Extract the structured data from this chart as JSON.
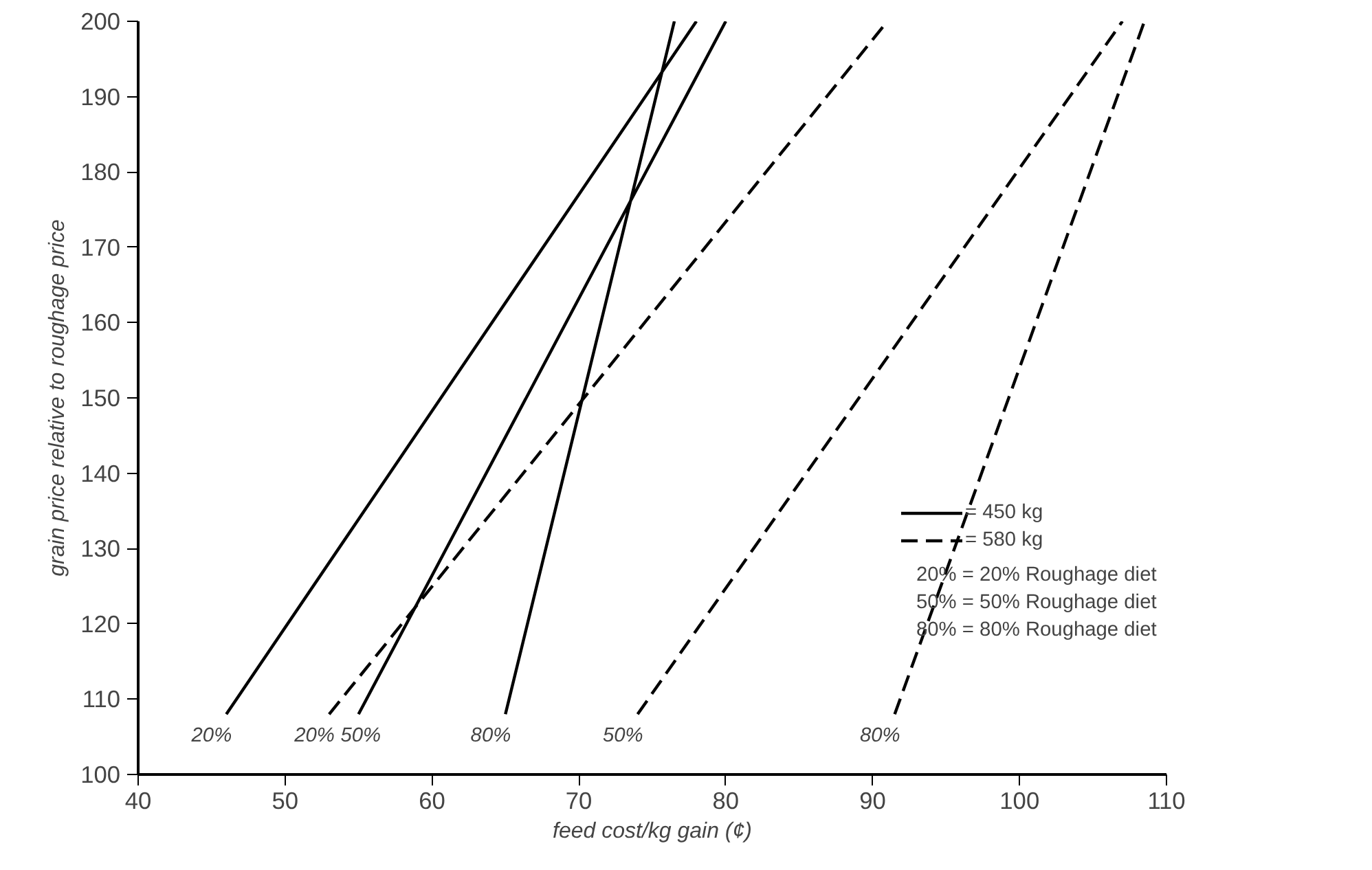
{
  "chart_data": {
    "type": "line",
    "xlabel": "feed cost/kg gain (¢)",
    "ylabel": "grain price relative to roughage price",
    "xlim": [
      40,
      110
    ],
    "ylim": [
      100,
      200
    ],
    "xticks": [
      40,
      50,
      60,
      70,
      80,
      90,
      100,
      110
    ],
    "yticks": [
      100,
      110,
      120,
      130,
      140,
      150,
      160,
      170,
      180,
      190,
      200
    ],
    "grid": false,
    "legend": "bottom right",
    "series": [
      {
        "name": "= 450 kg",
        "color": "#000000",
        "line_style": "solid",
        "x": [
          46,
          78,
          null,
          55,
          80,
          null,
          65,
          76.5
        ],
        "values": [
          108,
          200,
          null,
          108,
          200,
          null,
          108,
          200
        ]
      },
      {
        "name": "= 580 kg",
        "color": "#000000",
        "line_style": "dashed",
        "x": [
          53,
          91,
          null,
          74,
          107,
          null,
          91.5,
          108.5
        ],
        "values": [
          108,
          200,
          null,
          108,
          200,
          null,
          108,
          200
        ]
      }
    ],
    "annotations": [
      "20% = 20% Roughage diet",
      "50% = 50% Roughage diet",
      "80% = 80% Roughage diet",
      {
        "text": "20%",
        "x": 46,
        "y": 108
      },
      {
        "text": "50%",
        "x": 55,
        "y": 108
      },
      {
        "text": "80%",
        "x": 65,
        "y": 108
      },
      {
        "text": "20%",
        "x": 53,
        "y": 108
      },
      {
        "text": "50%",
        "x": 74,
        "y": 108
      },
      {
        "text": "80%",
        "x": 91.5,
        "y": 108
      }
    ]
  }
}
